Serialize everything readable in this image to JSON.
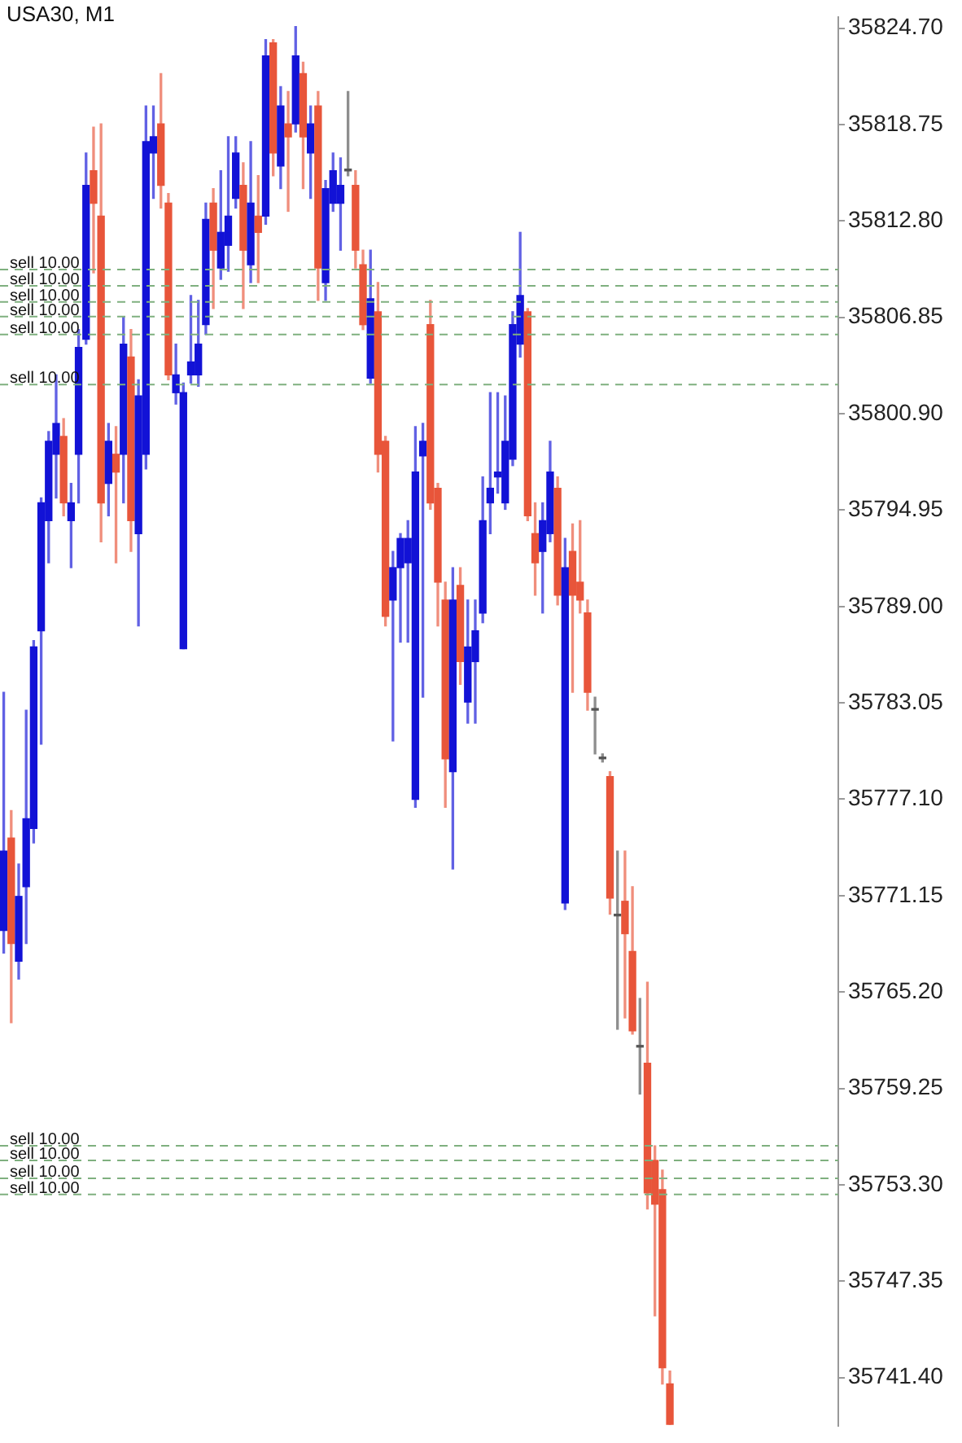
{
  "chart_data": {
    "type": "candlestick",
    "title": "USA30, M1",
    "categories": [
      null,
      null,
      null,
      null,
      null,
      null,
      null,
      null,
      null,
      null,
      null,
      null,
      null,
      null,
      null,
      null,
      null,
      null,
      null,
      null,
      null,
      null,
      null,
      null,
      null,
      null,
      null,
      null,
      null,
      null,
      null,
      null,
      null,
      null,
      null,
      null,
      null,
      null,
      null,
      null,
      null,
      null,
      null,
      null,
      null,
      null,
      null,
      null,
      null,
      null,
      null,
      null,
      null,
      null,
      null,
      null,
      null,
      null,
      null,
      null,
      null,
      null,
      null,
      null,
      null,
      null,
      null,
      null,
      null,
      null,
      null,
      null,
      null,
      null,
      null,
      null,
      null,
      null,
      null,
      null,
      null,
      null,
      null,
      null,
      null,
      null,
      null,
      null,
      null,
      null,
      null,
      null,
      null,
      null,
      null,
      null,
      null,
      null,
      null,
      null,
      null,
      null,
      null,
      null,
      null,
      null,
      null,
      null,
      null,
      null,
      null,
      null
    ],
    "ohlc": [
      [
        35769.0,
        35783.7,
        35767.6,
        35773.9
      ],
      [
        35774.7,
        35776.4,
        35763.3,
        35768.2
      ],
      [
        35767.1,
        35773.1,
        35766.0,
        35771.1
      ],
      [
        35771.7,
        35782.6,
        35768.2,
        35775.9
      ],
      [
        35775.3,
        35786.9,
        35774.4,
        35786.5
      ],
      [
        35787.5,
        35795.7,
        35780.5,
        35795.4
      ],
      [
        35794.3,
        35799.8,
        35791.7,
        35799.2
      ],
      [
        35798.4,
        35803.3,
        35795.7,
        35800.3
      ],
      [
        35799.5,
        35800.6,
        35794.6,
        35795.4
      ],
      [
        35794.3,
        35796.6,
        35791.4,
        35795.4
      ],
      [
        35798.4,
        35806.1,
        35795.4,
        35805.0
      ],
      [
        35805.5,
        35817.0,
        35805.2,
        35815.0
      ],
      [
        35815.9,
        35818.6,
        35809.6,
        35813.9
      ],
      [
        35813.1,
        35818.8,
        35793.0,
        35795.4
      ],
      [
        35796.6,
        35800.3,
        35794.6,
        35799.2
      ],
      [
        35798.4,
        35800.1,
        35791.7,
        35797.3
      ],
      [
        35798.4,
        35806.9,
        35795.4,
        35805.2
      ],
      [
        35804.4,
        35806.1,
        35792.4,
        35794.3
      ],
      [
        35793.5,
        35803.0,
        35787.8,
        35802.0
      ],
      [
        35798.4,
        35819.9,
        35797.5,
        35817.7
      ],
      [
        35817.0,
        35819.9,
        35814.2,
        35818.0
      ],
      [
        35818.8,
        35821.9,
        35813.6,
        35815.0
      ],
      [
        35813.9,
        35814.5,
        35803.0,
        35803.3
      ],
      [
        35802.2,
        35805.2,
        35801.5,
        35803.3
      ],
      [
        35786.4,
        35802.8,
        35786.4,
        35802.2
      ],
      [
        35803.3,
        35808.2,
        35802.8,
        35804.1
      ],
      [
        35803.3,
        35807.9,
        35802.6,
        35805.2
      ],
      [
        35806.4,
        35813.9,
        35805.8,
        35812.9
      ],
      [
        35813.9,
        35814.8,
        35807.4,
        35811.0
      ],
      [
        35809.9,
        35815.9,
        35809.2,
        35812.1
      ],
      [
        35811.3,
        35818.0,
        35809.7,
        35813.1
      ],
      [
        35814.2,
        35818.0,
        35813.6,
        35817.0
      ],
      [
        35815.0,
        35816.4,
        35807.4,
        35811.0
      ],
      [
        35810.1,
        35817.7,
        35809.0,
        35813.9
      ],
      [
        35813.1,
        35815.6,
        35809.0,
        35812.1
      ],
      [
        35813.1,
        35824.0,
        35812.6,
        35823.0
      ],
      [
        35823.8,
        35824.0,
        35815.6,
        35817.0
      ],
      [
        35816.2,
        35821.1,
        35814.8,
        35819.9
      ],
      [
        35818.8,
        35820.8,
        35813.4,
        35818.0
      ],
      [
        35818.8,
        35824.8,
        35818.3,
        35823.0
      ],
      [
        35821.9,
        35822.6,
        35814.8,
        35818.0
      ],
      [
        35817.0,
        35819.9,
        35814.2,
        35818.8
      ],
      [
        35819.9,
        35820.8,
        35807.9,
        35809.9
      ],
      [
        35809.0,
        35815.3,
        35807.9,
        35814.8
      ],
      [
        35813.9,
        35817.0,
        35813.4,
        35815.9
      ],
      [
        35813.9,
        35816.7,
        35811.0,
        35815.0
      ],
      [
        35815.9,
        35820.8,
        35815.6,
        35815.9
      ],
      [
        35815.0,
        35815.9,
        35809.9,
        35811.0
      ],
      [
        35810.1,
        35811.0,
        35806.1,
        35806.4
      ],
      [
        35803.1,
        35811.0,
        35802.8,
        35808.0
      ],
      [
        35807.2,
        35809.0,
        35797.3,
        35798.4
      ],
      [
        35799.2,
        35799.5,
        35787.8,
        35788.4
      ],
      [
        35789.4,
        35792.4,
        35780.7,
        35791.4
      ],
      [
        35791.4,
        35793.5,
        35786.8,
        35793.2
      ],
      [
        35791.7,
        35794.3,
        35786.8,
        35793.2
      ],
      [
        35777.1,
        35800.1,
        35776.6,
        35797.3
      ],
      [
        35798.3,
        35800.3,
        35783.4,
        35799.2
      ],
      [
        35806.4,
        35807.9,
        35795.0,
        35795.4
      ],
      [
        35796.3,
        35796.6,
        35787.8,
        35790.5
      ],
      [
        35789.4,
        35790.5,
        35776.6,
        35779.6
      ],
      [
        35778.8,
        35791.4,
        35772.8,
        35789.4
      ],
      [
        35790.3,
        35791.4,
        35784.2,
        35785.6
      ],
      [
        35783.1,
        35789.4,
        35781.8,
        35786.5
      ],
      [
        35785.6,
        35789.4,
        35781.8,
        35787.5
      ],
      [
        35788.6,
        35797.0,
        35788.0,
        35794.3
      ],
      [
        35795.4,
        35802.2,
        35793.5,
        35796.3
      ],
      [
        35797.0,
        35802.2,
        35796.0,
        35797.3
      ],
      [
        35795.4,
        35802.0,
        35795.0,
        35799.2
      ],
      [
        35798.1,
        35807.2,
        35797.7,
        35806.4
      ],
      [
        35805.2,
        35812.1,
        35804.4,
        35808.2
      ],
      [
        35807.2,
        35807.4,
        35794.3,
        35794.6
      ],
      [
        35793.5,
        35795.4,
        35789.7,
        35791.7
      ],
      [
        35792.4,
        35795.4,
        35788.6,
        35794.3
      ],
      [
        35793.5,
        35799.2,
        35793.0,
        35797.3
      ],
      [
        35796.3,
        35797.0,
        35789.1,
        35789.7
      ],
      [
        35770.7,
        35793.2,
        35770.3,
        35791.4
      ],
      [
        35792.4,
        35794.1,
        35783.7,
        35789.7
      ],
      [
        35790.5,
        35794.3,
        35788.6,
        35789.4
      ],
      [
        35788.6,
        35789.4,
        35782.6,
        35783.7
      ],
      [
        35782.6,
        35783.4,
        35779.9,
        35782.6
      ],
      [
        35779.6,
        35779.9,
        35779.4,
        35779.6
      ],
      [
        35778.5,
        35778.8,
        35770.0,
        35771.0
      ],
      [
        35769.9,
        35773.9,
        35762.9,
        35769.9
      ],
      [
        35770.8,
        35773.9,
        35763.6,
        35768.8
      ],
      [
        35767.7,
        35771.7,
        35762.6,
        35762.8
      ],
      [
        35761.8,
        35764.8,
        35758.9,
        35761.8
      ],
      [
        35760.8,
        35765.8,
        35751.8,
        35752.8
      ],
      [
        35754.8,
        35755.7,
        35745.2,
        35752.1
      ],
      [
        35753.0,
        35754.2,
        35741.0,
        35742.0
      ],
      [
        35741.0,
        35741.8,
        35738.5,
        35738.5
      ],
      null,
      null,
      null,
      null,
      null,
      null,
      null,
      null,
      null,
      null,
      null,
      null,
      null,
      null,
      null,
      null,
      null,
      null,
      null,
      null,
      null,
      null
    ],
    "colors": [
      "#1212d6",
      "#e8553a",
      "#1212d6",
      "#1212d6",
      "#1212d6",
      "#1212d6",
      "#1212d6",
      "#1212d6",
      "#e8553a",
      "#1212d6",
      "#1212d6",
      "#1212d6",
      "#e8553a",
      "#e8553a",
      "#1212d6",
      "#e8553a",
      "#1212d6",
      "#e8553a",
      "#1212d6",
      "#1212d6",
      "#1212d6",
      "#e8553a",
      "#e8553a",
      "#1212d6",
      "#1212d6",
      "#1212d6",
      "#1212d6",
      "#1212d6",
      "#e8553a",
      "#1212d6",
      "#1212d6",
      "#1212d6",
      "#e8553a",
      "#1212d6",
      "#e8553a",
      "#1212d6",
      "#e8553a",
      "#1212d6",
      "#e8553a",
      "#1212d6",
      "#e8553a",
      "#1212d6",
      "#e8553a",
      "#1212d6",
      "#1212d6",
      "#1212d6",
      "#555555",
      "#e8553a",
      "#e8553a",
      "#1212d6",
      "#e8553a",
      "#e8553a",
      "#1212d6",
      "#1212d6",
      "#1212d6",
      "#1212d6",
      "#1212d6",
      "#e8553a",
      "#e8553a",
      "#e8553a",
      "#1212d6",
      "#e8553a",
      "#1212d6",
      "#1212d6",
      "#1212d6",
      "#1212d6",
      "#1212d6",
      "#1212d6",
      "#1212d6",
      "#1212d6",
      "#e8553a",
      "#e8553a",
      "#1212d6",
      "#1212d6",
      "#e8553a",
      "#1212d6",
      "#e8553a",
      "#e8553a",
      "#e8553a",
      "#555555",
      "#555555",
      "#e8553a",
      "#555555",
      "#e8553a",
      "#e8553a",
      "#555555",
      "#e8553a",
      "#e8553a",
      "#e8553a",
      "#e8553a",
      null,
      null,
      null,
      null,
      null,
      null,
      null,
      null,
      null,
      null,
      null,
      null,
      null,
      null,
      null,
      null,
      null,
      null,
      null,
      null,
      null,
      null
    ],
    "ylim": [
      35738.4,
      35825.4
    ],
    "yticks": [
      {
        "value": 35824.7,
        "label": "35824.70"
      },
      {
        "value": 35818.75,
        "label": "35818.75"
      },
      {
        "value": 35812.8,
        "label": "35812.80"
      },
      {
        "value": 35806.85,
        "label": "35806.85"
      },
      {
        "value": 35800.9,
        "label": "35800.90"
      },
      {
        "value": 35794.95,
        "label": "35794.95"
      },
      {
        "value": 35789.0,
        "label": "35789.00"
      },
      {
        "value": 35783.05,
        "label": "35783.05"
      },
      {
        "value": 35777.1,
        "label": "35777.10"
      },
      {
        "value": 35771.15,
        "label": "35771.15"
      },
      {
        "value": 35765.2,
        "label": "35765.20"
      },
      {
        "value": 35759.25,
        "label": "35759.25"
      },
      {
        "value": 35753.3,
        "label": "35753.30"
      },
      {
        "value": 35747.35,
        "label": "35747.35"
      },
      {
        "value": 35741.4,
        "label": "35741.40"
      }
    ],
    "tick_labels": "y",
    "ref_lines": [
      {
        "axis": "y",
        "value": 35809.8,
        "label": "sell 10.00",
        "color": "#7fb07f",
        "line_style": "dashed"
      },
      {
        "axis": "y",
        "value": 35808.8,
        "label": "sell 10.00",
        "color": "#7fb07f",
        "line_style": "dashed"
      },
      {
        "axis": "y",
        "value": 35807.8,
        "label": "sell 10.00",
        "color": "#7fb07f",
        "line_style": "dashed"
      },
      {
        "axis": "y",
        "value": 35806.9,
        "label": "sell 10.00",
        "color": "#7fb07f",
        "line_style": "dashed"
      },
      {
        "axis": "y",
        "value": 35805.8,
        "label": "sell 10.00",
        "color": "#7fb07f",
        "line_style": "dashed"
      },
      {
        "axis": "y",
        "value": 35802.7,
        "label": "sell 10.00",
        "color": "#7fb07f",
        "line_style": "dashed"
      },
      {
        "axis": "y",
        "value": 35755.7,
        "label": "sell 10.00",
        "color": "#7fb07f",
        "line_style": "dashed"
      },
      {
        "axis": "y",
        "value": 35754.8,
        "label": "sell 10.00",
        "color": "#7fb07f",
        "line_style": "dashed"
      },
      {
        "axis": "y",
        "value": 35753.7,
        "label": "sell 10.00",
        "color": "#7fb07f",
        "line_style": "dashed"
      },
      {
        "axis": "y",
        "value": 35752.7,
        "label": "sell 10.00",
        "color": "#7fb07f",
        "line_style": "dashed"
      }
    ]
  }
}
